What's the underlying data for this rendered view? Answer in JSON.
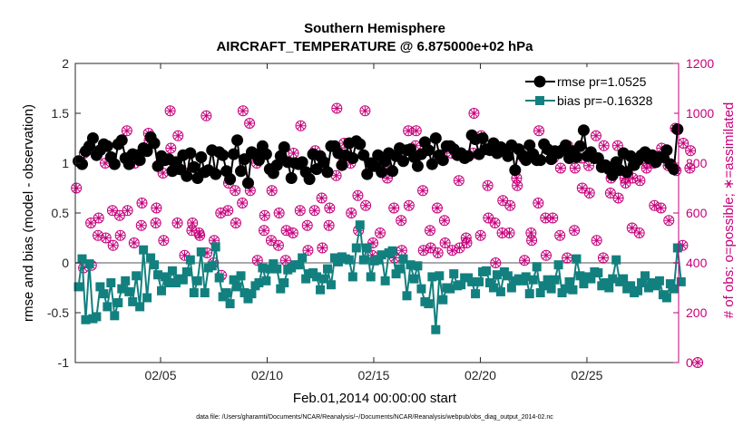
{
  "chart_data": {
    "type": "line",
    "title": "Southern Hemisphere",
    "subtitle": "AIRCRAFT_TEMPERATURE @ 6.875000e+02 hPa",
    "xlabel": "Feb.01,2014 00:00:00 start",
    "ylabel": "rmse and bias (model - observation)",
    "y2label": "# of obs: o=possible; ∗=assimilated",
    "xlim": [
      1,
      29.3
    ],
    "ylim": [
      -1,
      2
    ],
    "y2lim": [
      0,
      1200
    ],
    "x_ticks": [
      5,
      10,
      15,
      20,
      25
    ],
    "x_tick_labels": [
      "02/05",
      "02/10",
      "02/15",
      "02/20",
      "02/25"
    ],
    "y_ticks": [
      -1,
      -0.5,
      0,
      0.5,
      1,
      1.5,
      2
    ],
    "y_tick_labels": [
      "-1",
      "-0.5",
      "0",
      "0.5",
      "1",
      "1.5",
      "2"
    ],
    "y2_ticks": [
      0,
      200,
      400,
      600,
      800,
      1000,
      1200
    ],
    "y2_tick_labels": [
      "0",
      "200",
      "400",
      "600",
      "800",
      "1000",
      "1200"
    ],
    "zero_line": 0,
    "legend_position": "top-right",
    "series": [
      {
        "name": "rmse pr=1.0525",
        "axis": "left",
        "color": "#000000",
        "marker": "circle",
        "values": [
          1.02,
          0.99,
          1.12,
          1.17,
          1.25,
          1.08,
          1.13,
          1.19,
          1.17,
          1.06,
          0.99,
          1.19,
          1.23,
          1.05,
          0.99,
          1.09,
          1.08,
          1.03,
          1.15,
          1.12,
          1.26,
          1.2,
          0.97,
          1.07,
          1.03,
          1.04,
          0.92,
          1.01,
          0.94,
          1.08,
          0.87,
          1.1,
          0.96,
          0.85,
          1.06,
          0.91,
          0.93,
          1.13,
          0.89,
          1.11,
          1.08,
          0.92,
          0.84,
          1.09,
          1.23,
          0.92,
          1.04,
          0.8,
          1.11,
          1.09,
          1.03,
          1.17,
          1.09,
          0.94,
          0.9,
          0.98,
          1.07,
          1.16,
          1.01,
          0.85,
          1.0,
          0.99,
          1.01,
          0.91,
          0.84,
          1.09,
          0.94,
          1.07,
          1.01,
          0.91,
          1.17,
          1.17,
          1.1,
          0.98,
          1.08,
          1.2,
          1.05,
          1.22,
          1.19,
          1.08,
          0.89,
          1.0,
          0.97,
          1.08,
          0.91,
          1.02,
          1.1,
          0.92,
          1.07,
          1.15,
          1.02,
          1.13,
          1.14,
          1.06,
          0.97,
          1.09,
          1.21,
          1.13,
          0.99,
          1.25,
          1.08,
          1.03,
          1.17,
          1.17,
          1.14,
          1.08,
          1.1,
          1.05,
          1.07,
          1.28,
          1.24,
          1.09,
          1.25,
          1.14,
          1.13,
          1.2,
          1.1,
          1.16,
          1.12,
          1.07,
          1.18,
          0.93,
          1.14,
          1.08,
          1.03,
          1.18,
          1.09,
          1.03,
          1.03,
          1.19,
          1.14,
          1.04,
          1.12,
          1.1,
          1.13,
          1.18,
          1.05,
          1.12,
          1.06,
          1.17,
          1.33,
          1.07,
          1.11,
          1.05,
          1.05,
          0.96,
          0.98,
          0.94,
          0.88,
          1.01,
          0.93,
          1.1,
          0.91,
          1.07,
          0.98,
          1.03,
          1.08,
          1.11,
          1.05,
          1.08,
          1.01,
          1.06,
          1.06,
          1.13,
          0.99,
          0.94,
          1.34
        ]
      },
      {
        "name": "bias pr=-0.16328",
        "axis": "left",
        "color": "#12807f",
        "marker": "square",
        "values": [
          -0.24,
          0.04,
          -0.57,
          -0.01,
          -0.56,
          -0.54,
          -0.24,
          -0.31,
          -0.44,
          -0.2,
          -0.53,
          -0.4,
          -0.26,
          -0.18,
          -0.29,
          -0.39,
          -0.13,
          -0.44,
          0.13,
          -0.35,
          0.05,
          -0.02,
          -0.12,
          -0.28,
          -0.14,
          -0.2,
          -0.08,
          -0.2,
          -0.16,
          -0.17,
          -0.09,
          0.03,
          -0.3,
          -0.18,
          0.11,
          -0.3,
          -0.05,
          -0.03,
          0.16,
          -0.15,
          -0.34,
          -0.3,
          -0.41,
          -0.17,
          -0.24,
          -0.13,
          -0.3,
          -0.36,
          -0.31,
          -0.23,
          -0.2,
          -0.05,
          -0.18,
          -0.06,
          -0.01,
          -0.06,
          -0.26,
          -0.2,
          -0.07,
          -0.05,
          -0.02,
          -0.02,
          0.05,
          -0.16,
          -0.11,
          -0.1,
          -0.14,
          -0.27,
          -0.16,
          -0.06,
          -0.22,
          0.05,
          0.01,
          0.06,
          0.04,
          0.03,
          -0.14,
          0.15,
          0.38,
          0.03,
          0.15,
          -0.14,
          0.02,
          0.03,
          0.08,
          -0.18,
          0.1,
          0.12,
          -0.11,
          -0.06,
          0.04,
          -0.33,
          -0.02,
          -0.16,
          -0.03,
          -0.26,
          -0.39,
          -0.41,
          -0.14,
          -0.67,
          -0.13,
          -0.37,
          -0.25,
          -0.26,
          -0.11,
          -0.23,
          -0.22,
          -0.15,
          -0.15,
          -0.19,
          -0.31,
          -0.19,
          -0.09,
          -0.08,
          -0.2,
          -0.25,
          -0.12,
          -0.29,
          -0.09,
          -0.13,
          -0.25,
          -0.18,
          -0.16,
          -0.18,
          -0.14,
          -0.31,
          -0.17,
          -0.04,
          -0.3,
          -0.23,
          -0.17,
          -0.26,
          -0.17,
          -0.02,
          -0.3,
          -0.26,
          -0.19,
          -0.27,
          0.04,
          -0.13,
          -0.21,
          -0.14,
          -0.16,
          -0.09,
          -0.1,
          -0.23,
          -0.2,
          -0.25,
          -0.16,
          0.03,
          -0.19,
          -0.16,
          -0.26,
          -0.23,
          -0.3,
          -0.28,
          -0.2,
          -0.13,
          -0.25,
          -0.2,
          -0.23,
          -0.18,
          -0.32,
          -0.35,
          -0.21,
          -0.26,
          0.15,
          -0.19
        ]
      },
      {
        "name": "possible",
        "axis": "right",
        "color": "#c6007b",
        "marker": "open-circle",
        "values": [
          700,
          840,
          380,
          390,
          560,
          580,
          510,
          500,
          800,
          470,
          610,
          510,
          590,
          610,
          930,
          800,
          480,
          640,
          550,
          890,
          920,
          620,
          560,
          490,
          760,
          860,
          1010,
          910,
          560,
          760,
          430,
          560,
          530,
          510,
          520,
          440,
          990,
          490,
          400,
          350,
          600,
          720,
          610,
          560,
          690,
          1010,
          640,
          690,
          960,
          410,
          800,
          590,
          530,
          690,
          490,
          600,
          470,
          530,
          410,
          840,
          520,
          950,
          610,
          450,
          550,
          850,
          610,
          460,
          660,
          620,
          550,
          1020,
          750,
          880,
          820,
          600,
          800,
          530,
          670,
          630,
          1010,
          480,
          430,
          520,
          800,
          740,
          790,
          420,
          620,
          450,
          570,
          630,
          930,
          930,
          870,
          450,
          690,
          460,
          530,
          440,
          620,
          480,
          570,
          450,
          840,
          460,
          730,
          480,
          500,
          1000,
          840,
          910,
          510,
          580,
          710,
          400,
          560,
          650,
          520,
          630,
          520,
          710,
          740,
          410,
          820,
          490,
          520,
          930,
          640,
          430,
          580,
          820,
          580,
          780,
          510,
          870,
          420,
          780,
          530,
          700,
          820,
          680,
          790,
          490,
          910,
          870,
          420,
          740,
          680,
          660,
          870,
          720,
          740,
          740,
          540,
          730,
          520,
          800,
          780,
          630,
          800,
          860,
          620,
          570,
          790,
          770,
          940,
          880,
          470,
          850,
          780,
          0
        ]
      },
      {
        "name": "assimilated",
        "axis": "right",
        "color": "#c6007b",
        "marker": "star",
        "values": [
          700,
          840,
          380,
          390,
          560,
          580,
          510,
          500,
          800,
          470,
          610,
          510,
          590,
          610,
          930,
          800,
          480,
          640,
          550,
          890,
          920,
          620,
          560,
          490,
          760,
          860,
          1010,
          910,
          560,
          760,
          430,
          560,
          530,
          510,
          520,
          440,
          990,
          490,
          400,
          350,
          600,
          720,
          610,
          560,
          690,
          1010,
          640,
          690,
          960,
          410,
          800,
          590,
          530,
          690,
          490,
          600,
          470,
          530,
          410,
          840,
          520,
          950,
          610,
          450,
          550,
          850,
          610,
          460,
          660,
          620,
          550,
          1020,
          750,
          880,
          820,
          600,
          800,
          530,
          670,
          630,
          1010,
          480,
          430,
          520,
          800,
          740,
          790,
          420,
          620,
          450,
          570,
          630,
          930,
          930,
          870,
          450,
          690,
          460,
          530,
          440,
          620,
          480,
          570,
          450,
          840,
          460,
          730,
          480,
          500,
          1000,
          840,
          910,
          510,
          580,
          710,
          400,
          560,
          650,
          520,
          630,
          520,
          710,
          740,
          410,
          820,
          490,
          520,
          930,
          640,
          430,
          580,
          820,
          580,
          780,
          510,
          870,
          420,
          780,
          530,
          700,
          820,
          680,
          790,
          490,
          910,
          870,
          420,
          740,
          680,
          660,
          870,
          720,
          740,
          740,
          540,
          730,
          520,
          800,
          780,
          630,
          800,
          860,
          620,
          570,
          790,
          770,
          940,
          880,
          470,
          850,
          780,
          0
        ]
      }
    ]
  },
  "footer": "data file: /Users/gharamti/Documents/NCAR/Reanalysis/~/Documents/NCAR/Reanalysis/webpub/obs_diag_output_2014-02.nc"
}
